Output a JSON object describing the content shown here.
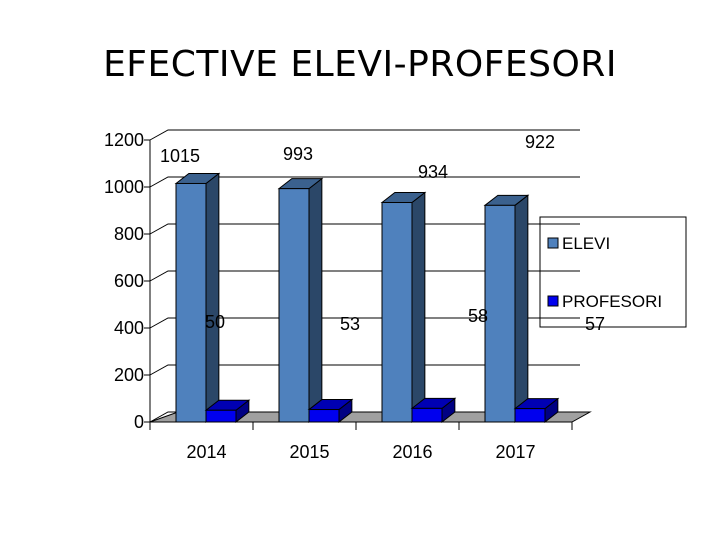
{
  "title": "EFECTIVE ELEVI-PROFESORI",
  "chart_data": {
    "type": "bar",
    "categories": [
      "2014",
      "2015",
      "2016",
      "2017"
    ],
    "series": [
      {
        "name": "ELEVI",
        "values": [
          1015,
          993,
          934,
          922
        ],
        "color": "#4f81bd"
      },
      {
        "name": "PROFESORI",
        "values": [
          50,
          53,
          58,
          57
        ],
        "color": "#0000ee"
      }
    ],
    "ylim": [
      0,
      1200
    ],
    "yticks": [
      "0",
      "200",
      "400",
      "600",
      "800",
      "1000",
      "1200"
    ],
    "grid": true,
    "legend": "right",
    "style": "3d-clustered-column"
  }
}
